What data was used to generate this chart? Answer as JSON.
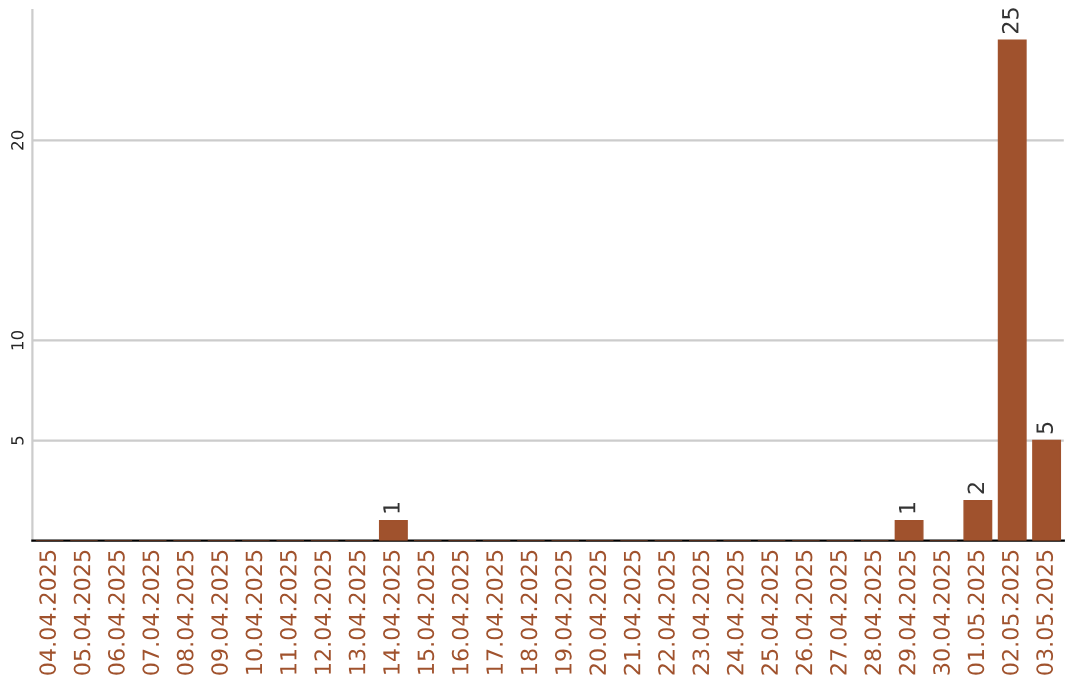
{
  "chart_data": {
    "type": "bar",
    "categories": [
      "04.04.2025",
      "05.04.2025",
      "06.04.2025",
      "07.04.2025",
      "08.04.2025",
      "09.04.2025",
      "10.04.2025",
      "11.04.2025",
      "12.04.2025",
      "13.04.2025",
      "14.04.2025",
      "15.04.2025",
      "16.04.2025",
      "17.04.2025",
      "18.04.2025",
      "19.04.2025",
      "20.04.2025",
      "21.04.2025",
      "22.04.2025",
      "23.04.2025",
      "24.04.2025",
      "25.04.2025",
      "26.04.2025",
      "27.04.2025",
      "28.04.2025",
      "29.04.2025",
      "30.04.2025",
      "01.05.2025",
      "02.05.2025",
      "03.05.2025"
    ],
    "values": [
      0,
      0,
      0,
      0,
      0,
      0,
      0,
      0,
      0,
      0,
      1,
      0,
      0,
      0,
      0,
      0,
      0,
      0,
      0,
      0,
      0,
      0,
      0,
      0,
      0,
      1,
      0,
      2,
      25,
      5
    ],
    "value_labels": [
      null,
      null,
      null,
      null,
      null,
      null,
      null,
      null,
      null,
      null,
      "1",
      null,
      null,
      null,
      null,
      null,
      null,
      null,
      null,
      null,
      null,
      null,
      null,
      null,
      null,
      "1",
      null,
      "2",
      "25",
      "5"
    ],
    "color": "#a0522d",
    "ylim": [
      0,
      26.5
    ],
    "yticks": [
      5,
      10,
      20
    ],
    "grid": "y"
  }
}
